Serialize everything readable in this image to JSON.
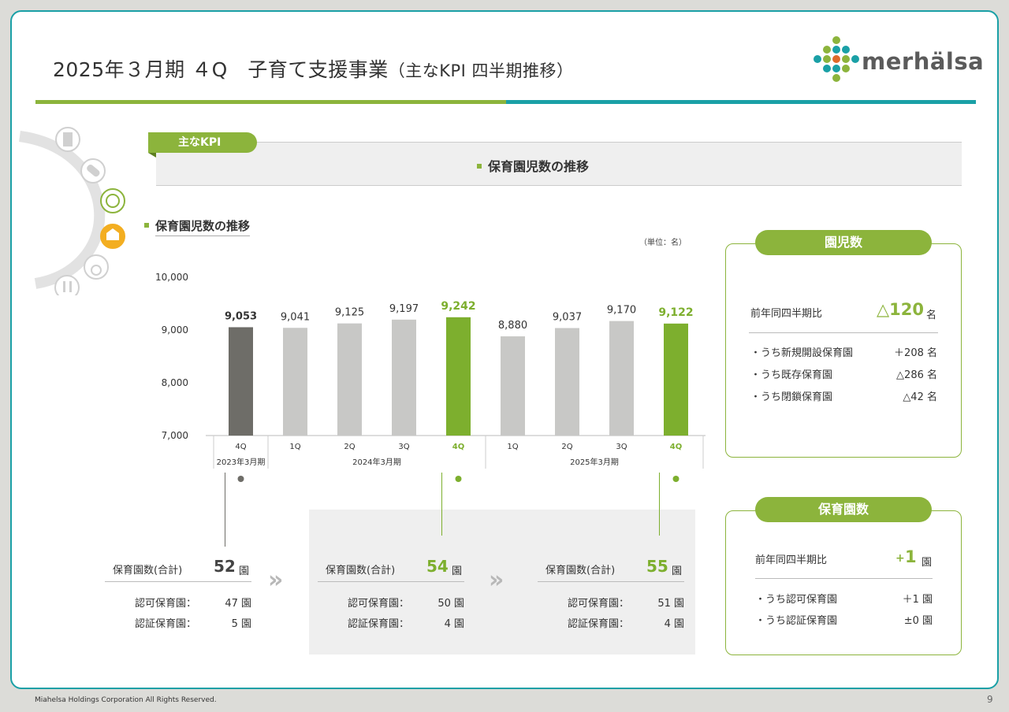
{
  "header": {
    "title": "2025年３月期 ４Q　子育て支援事業",
    "title_paren": "（主なKPI 四半期推移）",
    "logo_text": "merhälsa"
  },
  "kpi_tag": "主なKPI",
  "banner_title": "保育園児数の推移",
  "section_title": "保育園児数の推移",
  "unit": "（単位：名）",
  "chart_data": {
    "type": "bar",
    "title": "保育園児数の推移",
    "categories": [
      "4Q",
      "1Q",
      "2Q",
      "3Q",
      "4Q",
      "1Q",
      "2Q",
      "3Q",
      "4Q"
    ],
    "groups": [
      {
        "label": "2023年3月期",
        "count": 1
      },
      {
        "label": "2024年3月期",
        "count": 4
      },
      {
        "label": "2025年3月期",
        "count": 4
      }
    ],
    "values": [
      9053,
      9041,
      9125,
      9197,
      9242,
      8880,
      9037,
      9170,
      9122
    ],
    "value_labels": [
      "9,053",
      "9,041",
      "9,125",
      "9,197",
      "9,242",
      "8,880",
      "9,037",
      "9,170",
      "9,122"
    ],
    "highlight": [
      0,
      4,
      8
    ],
    "ylim": [
      7000,
      10000
    ],
    "yticks": [
      7000,
      8000,
      9000,
      10000
    ],
    "ytick_labels": [
      "7,000",
      "8,000",
      "9,000",
      "10,000"
    ],
    "colors": {
      "base": "#c8c8c6",
      "dark": "#6e6d68",
      "green": "#7daf2e"
    }
  },
  "facilities": [
    {
      "label": "保育園数(合計)",
      "value": "52",
      "unit": "園",
      "color": "#444444",
      "sub1_label": "認可保育園：",
      "sub1_value": "47 園",
      "sub2_label": "認証保育園：",
      "sub2_value": "5 園"
    },
    {
      "label": "保育園数(合計)",
      "value": "54",
      "unit": "園",
      "color": "#7daf2e",
      "sub1_label": "認可保育園：",
      "sub1_value": "50 園",
      "sub2_label": "認証保育園：",
      "sub2_value": "4 園"
    },
    {
      "label": "保育園数(合計)",
      "value": "55",
      "unit": "園",
      "color": "#7daf2e",
      "sub1_label": "認可保育園：",
      "sub1_value": "51 園",
      "sub2_label": "認証保育園：",
      "sub2_value": "4 園"
    }
  ],
  "arrows": [
    "»",
    "»"
  ],
  "children_panel": {
    "title": "園児数",
    "yoy_label": "前年同四半期比",
    "yoy_value": "△120",
    "yoy_unit": "名",
    "rows": [
      {
        "label": "・うち新規開設保育園",
        "value": "＋208 名"
      },
      {
        "label": "・うち既存保育園",
        "value": "△286 名"
      },
      {
        "label": "・うち閉鎖保育園",
        "value": "△42 名"
      }
    ]
  },
  "nursery_panel": {
    "title": "保育園数",
    "yoy_label": "前年同四半期比",
    "yoy_sign": "+",
    "yoy_value": "1",
    "yoy_unit": "園",
    "rows": [
      {
        "label": "・うち認可保育園",
        "value": "＋1 園"
      },
      {
        "label": "・うち認証保育園",
        "value": "±0 園"
      }
    ]
  },
  "footer": "Miahelsa Holdings Corporation All Rights Reserved.",
  "page_number": "9"
}
